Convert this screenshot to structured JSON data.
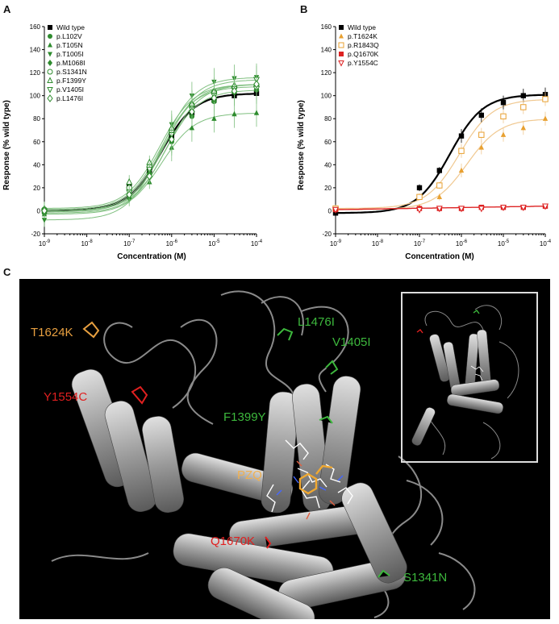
{
  "panels": {
    "a": {
      "letter": "A",
      "xlabel": "Concentration (M)",
      "ylabel": "Response (% wild type)",
      "yticks": [
        "-20",
        "0",
        "20",
        "40",
        "60",
        "80",
        "100",
        "120",
        "140",
        "160"
      ],
      "xticks": [
        {
          "base": "10",
          "exp": "-9"
        },
        {
          "base": "10",
          "exp": "-8"
        },
        {
          "base": "10",
          "exp": "-7"
        },
        {
          "base": "10",
          "exp": "-6"
        },
        {
          "base": "10",
          "exp": "-5"
        },
        {
          "base": "10",
          "exp": "-4"
        }
      ],
      "legend": [
        "Wild type",
        "p.L102V",
        "p.T105N",
        "p.T1005I",
        "p.M1068I",
        "p.S1341N",
        "p.F1399Y",
        "p.V1405I",
        "p.L1476I"
      ]
    },
    "b": {
      "letter": "B",
      "xlabel": "Concentration (M)",
      "ylabel": "Response (% wild type)",
      "yticks": [
        "-20",
        "0",
        "20",
        "40",
        "60",
        "80",
        "100",
        "120",
        "140",
        "160"
      ],
      "xticks": [
        {
          "base": "10",
          "exp": "-9"
        },
        {
          "base": "10",
          "exp": "-8"
        },
        {
          "base": "10",
          "exp": "-7"
        },
        {
          "base": "10",
          "exp": "-6"
        },
        {
          "base": "10",
          "exp": "-5"
        },
        {
          "base": "10",
          "exp": "-4"
        }
      ],
      "legend": [
        "Wild type",
        "p.T1624K",
        "p.R1843Q",
        "p.Q1670K",
        "p.Y1554C"
      ]
    },
    "c": {
      "letter": "C",
      "labels": {
        "t1624k": "T1624K",
        "y1554c": "Y1554C",
        "l1476i": "L1476I",
        "v1405i": "V1405I",
        "f1399y": "F1399Y",
        "pzq": "PZQ",
        "q1670k": "Q1670K",
        "s1341n": "S1341N"
      }
    }
  },
  "colors": {
    "wild_type": "#000000",
    "green": "#2e8b2e",
    "green_light": "#7fbf7f",
    "orange": "#e8a030",
    "orange_light": "#f0c890",
    "red": "#dd2222",
    "label_orange": "#e8a040",
    "label_red": "#e02020",
    "label_green": "#3db83d",
    "label_pzq": "#f0b050"
  },
  "chart_data": [
    {
      "type": "line",
      "panel": "A",
      "xlabel": "Concentration (M)",
      "ylabel": "Response (% wild type)",
      "xscale": "log",
      "xlim": [
        1e-09,
        0.0001
      ],
      "ylim": [
        -20,
        160
      ],
      "x": [
        1e-09,
        1e-07,
        3e-07,
        1e-06,
        3e-06,
        1e-05,
        3e-05,
        0.0001
      ],
      "series": [
        {
          "name": "Wild type",
          "values": [
            0,
            22,
            35,
            65,
            85,
            96,
            100,
            102
          ]
        },
        {
          "name": "p.L102V",
          "values": [
            -2,
            18,
            32,
            60,
            82,
            95,
            103,
            105
          ]
        },
        {
          "name": "p.T105N",
          "values": [
            -3,
            12,
            25,
            55,
            72,
            80,
            84,
            85
          ]
        },
        {
          "name": "p.T1005I",
          "values": [
            -8,
            10,
            30,
            75,
            100,
            112,
            115,
            116
          ]
        },
        {
          "name": "p.M1068I",
          "values": [
            0,
            15,
            35,
            68,
            90,
            102,
            108,
            110
          ]
        },
        {
          "name": "p.S1341N",
          "values": [
            1,
            20,
            38,
            70,
            92,
            103,
            107,
            108
          ]
        },
        {
          "name": "p.F1399Y",
          "values": [
            2,
            25,
            42,
            72,
            93,
            104,
            109,
            110
          ]
        },
        {
          "name": "p.V1405I",
          "values": [
            -1,
            16,
            36,
            66,
            88,
            100,
            106,
            114
          ]
        },
        {
          "name": "p.L1476I",
          "values": [
            0,
            14,
            30,
            62,
            86,
            98,
            104,
            110
          ]
        }
      ]
    },
    {
      "type": "line",
      "panel": "B",
      "xlabel": "Concentration (M)",
      "ylabel": "Response (% wild type)",
      "xscale": "log",
      "xlim": [
        1e-09,
        0.0001
      ],
      "ylim": [
        -20,
        160
      ],
      "x": [
        1e-09,
        1e-07,
        3e-07,
        1e-06,
        3e-06,
        1e-05,
        3e-05,
        0.0001
      ],
      "series": [
        {
          "name": "Wild type",
          "values": [
            -2,
            20,
            35,
            65,
            83,
            94,
            100,
            101
          ]
        },
        {
          "name": "p.T1624K",
          "values": [
            1,
            3,
            12,
            35,
            55,
            66,
            72,
            80
          ]
        },
        {
          "name": "p.R1843Q",
          "values": [
            2,
            12,
            22,
            52,
            66,
            82,
            90,
            97
          ]
        },
        {
          "name": "p.Q1670K",
          "values": [
            1,
            2,
            2,
            2,
            3,
            3,
            3,
            4
          ]
        },
        {
          "name": "p.Y1554C",
          "values": [
            1,
            1,
            2,
            2,
            2,
            3,
            3,
            4
          ]
        }
      ]
    }
  ]
}
